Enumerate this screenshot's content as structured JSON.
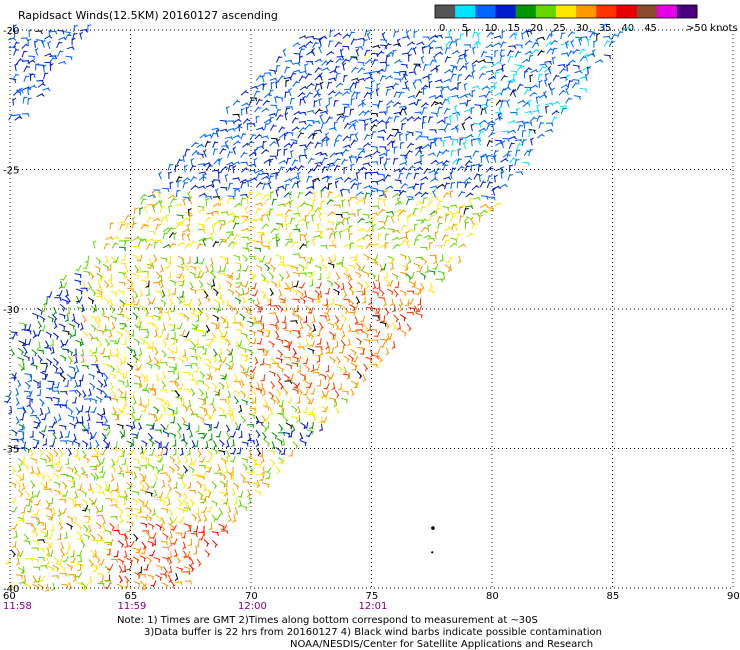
{
  "title": "Rapidsact Winds(12.5KM) 20160127 ascending",
  "legend": {
    "labels": [
      "0",
      "5",
      "10",
      "15",
      "20",
      "25",
      "30",
      "35",
      "40",
      "45",
      ">50 knots"
    ],
    "colors": [
      "#555555",
      "#00e5ff",
      "#0066ff",
      "#001ccf",
      "#009600",
      "#66d600",
      "#ffe600",
      "#ff9900",
      "#ff3300",
      "#e60000",
      "#8b4a2b",
      "#e600e6",
      "#4b0082"
    ]
  },
  "map": {
    "lat_labels": [
      "-20",
      "-25",
      "-30",
      "-35",
      "-40"
    ],
    "lat_values": [
      -20,
      -25,
      -30,
      -35,
      -40
    ],
    "lon_labels": [
      "60",
      "65",
      "70",
      "75",
      "80",
      "85",
      "90"
    ],
    "lon_values": [
      60,
      65,
      70,
      75,
      80,
      85,
      90
    ],
    "times": [
      "11:58",
      "11:59",
      "12:00",
      "12:01"
    ],
    "time_lons": [
      60,
      65,
      70,
      75
    ]
  },
  "notes": [
    "Note: 1) Times are GMT 2)Times along bottom correspond to measurement at ~30S",
    "3)Data buffer is 22 hrs from 20160127 4) Black wind barbs indicate possible contamination",
    "NOAA/NESDIS/Center for Satellite Applications and Research"
  ]
}
